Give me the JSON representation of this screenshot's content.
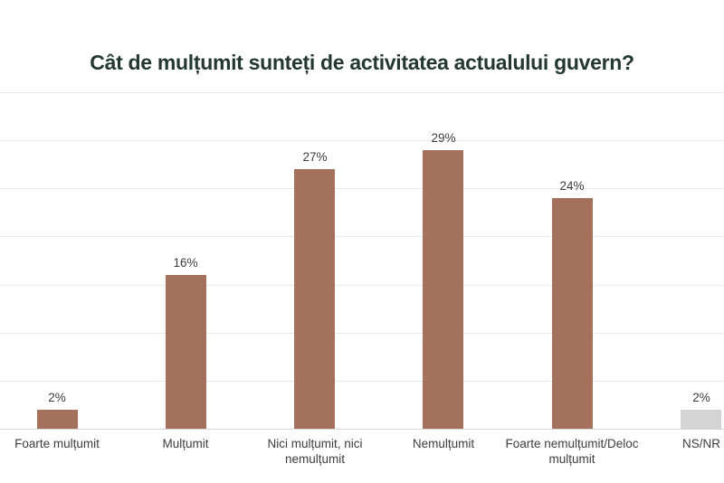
{
  "title": "Cât de mulțumit sunteți de activitatea actualului guvern?",
  "chart_data": {
    "type": "bar",
    "title": "Cât de mulțumit sunteți de activitatea actualului guvern?",
    "categories": [
      "Foarte mulțumit",
      "Mulțumit",
      "Nici mulțumit, nici nemulțumit",
      "Nemulțumit",
      "Foarte nemulțumit/Deloc mulțumit",
      "NS/NR"
    ],
    "values": [
      2,
      16,
      27,
      29,
      24,
      2
    ],
    "value_labels": [
      "2%",
      "16%",
      "27%",
      "29%",
      "24%",
      "2%"
    ],
    "bar_colors": [
      "#a4715d",
      "#a4715d",
      "#a4715d",
      "#a4715d",
      "#a4715d",
      "#d4d4d4"
    ],
    "xlabel": "",
    "ylabel": "",
    "ylim": [
      0,
      35
    ],
    "gridline_step": 5,
    "grid": true,
    "legend": false
  },
  "colors": {
    "title_text": "#243831",
    "bar_primary": "#a4715d",
    "bar_neutral": "#d4d4d4",
    "gridline": "#e9e9e9",
    "axis_line": "#d6d6d6",
    "label_text": "#3d3d3d",
    "background": "#ffffff"
  }
}
